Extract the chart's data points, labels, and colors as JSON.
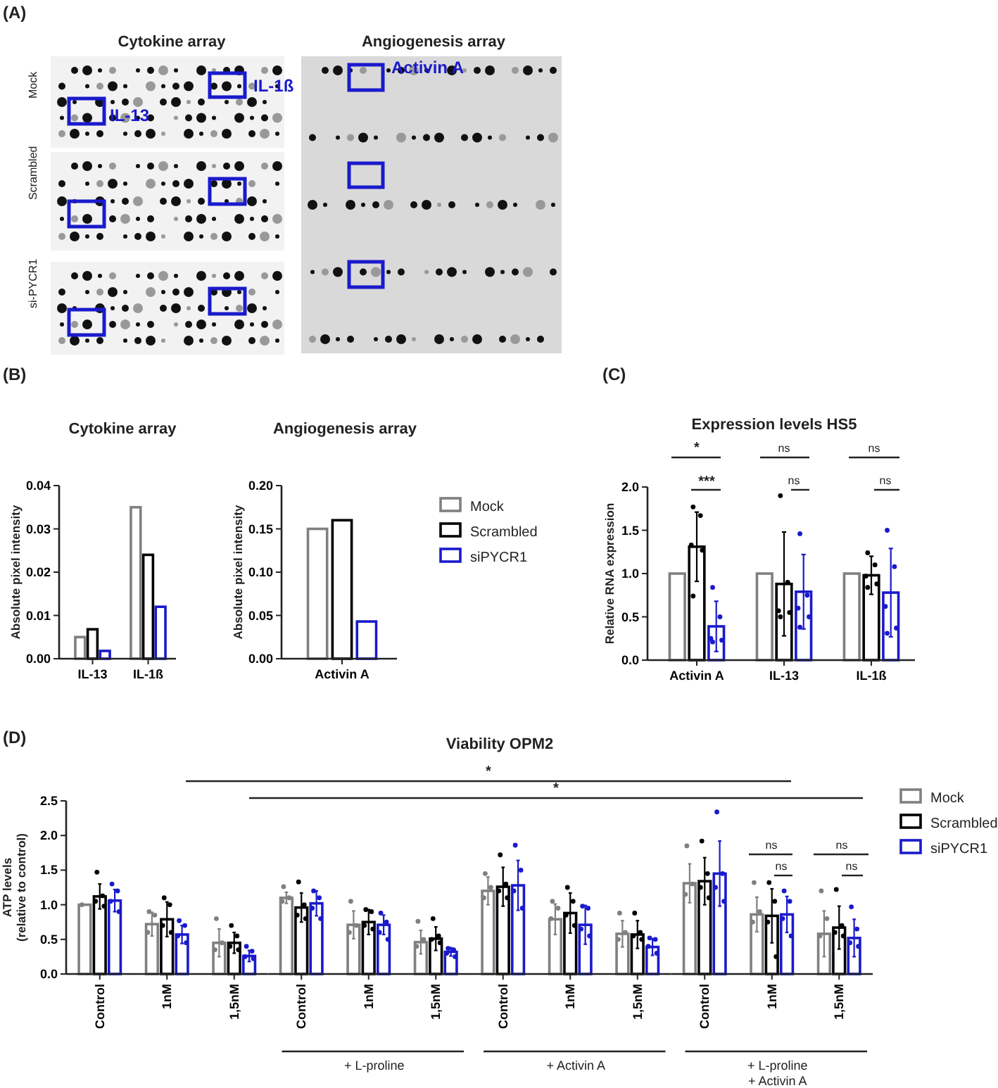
{
  "chart_data": [
    {
      "type": "other",
      "title": "(A)",
      "annotations": [
        "Cytokine array",
        "Angiogenesis array",
        "Mock",
        "Scrambled",
        "si-PYCR1",
        "IL-13",
        "IL-1ß",
        "Activin A"
      ]
    },
    {
      "type": "bar",
      "title": "Cytokine array",
      "ylabel": "Absolute pixel intensity",
      "annotations": [
        "(B)"
      ],
      "categories": [
        "IL-13",
        "IL-1ß"
      ],
      "ylim": [
        0,
        0.04
      ],
      "yticks": [
        {
          "value": 0,
          "label": "0.00"
        },
        {
          "value": 0.01,
          "label": "0.01"
        },
        {
          "value": 0.02,
          "label": "0.02"
        },
        {
          "value": 0.03,
          "label": "0.03"
        },
        {
          "value": 0.04,
          "label": "0.04"
        }
      ],
      "series": [
        {
          "color": "#808080",
          "values": [
            0.005,
            0.035
          ]
        },
        {
          "color": "#000000",
          "values": [
            0.0068,
            0.024
          ]
        },
        {
          "color": "#1a1acc",
          "values": [
            0.0018,
            0.012
          ]
        }
      ]
    },
    {
      "type": "bar",
      "title": "Angiogenesis array",
      "ylabel": "Absolute pixel intensity",
      "legend": "right",
      "categories": [
        "Activin A"
      ],
      "ylim": [
        0,
        0.2
      ],
      "yticks": [
        {
          "value": 0,
          "label": "0.00"
        },
        {
          "value": 0.05,
          "label": "0.05"
        },
        {
          "value": 0.1,
          "label": "0.10"
        },
        {
          "value": 0.15,
          "label": "0.15"
        },
        {
          "value": 0.2,
          "label": "0.20"
        }
      ],
      "series": [
        {
          "name": "Mock",
          "color": "#808080",
          "values": [
            0.15
          ]
        },
        {
          "name": "Scrambled",
          "color": "#000000",
          "values": [
            0.16
          ]
        },
        {
          "name": "siPYCR1",
          "color": "#1a1acc",
          "values": [
            0.043
          ]
        }
      ]
    },
    {
      "type": "bar",
      "title": "Expression levels HS5",
      "ylabel": "Relative RNA expression",
      "annotations": [
        "(C)",
        "*",
        "***",
        "ns",
        "ns",
        "ns",
        "ns"
      ],
      "marker": "circle",
      "categories": [
        "Activin A",
        "IL-13",
        "IL-1ß"
      ],
      "ylim": [
        0,
        2
      ],
      "yticks": [
        {
          "value": 0,
          "label": "0.0"
        },
        {
          "value": 0.5,
          "label": "0.5"
        },
        {
          "value": 1,
          "label": "1.0"
        },
        {
          "value": 1.5,
          "label": "1.5"
        },
        {
          "value": 2,
          "label": "2.0"
        }
      ],
      "series": [
        {
          "color": "#808080",
          "values": [
            1,
            1,
            1
          ]
        },
        {
          "color": "#000000",
          "values": [
            1.31,
            0.88,
            0.98
          ],
          "errors": [
            0.4,
            0.6,
            0.22
          ]
        },
        {
          "color": "#1a1acc",
          "values": [
            0.39,
            0.79,
            0.78
          ],
          "errors": [
            0.29,
            0.43,
            0.51
          ]
        },
        {
          "type": "scatter",
          "color": "#000000",
          "x": [
            "Activin A",
            "Activin A",
            "Activin A",
            "Activin A",
            "Activin A",
            "IL-13",
            "IL-13",
            "IL-13",
            "IL-13",
            "IL-13",
            "IL-1ß",
            "IL-1ß",
            "IL-1ß",
            "IL-1ß",
            "IL-1ß"
          ],
          "values": [
            1.77,
            1.67,
            1.33,
            1.27,
            0.74,
            1.9,
            0.9,
            0.57,
            0.55,
            0.5,
            1.24,
            1.1,
            0.97,
            0.88,
            0.84
          ]
        },
        {
          "type": "scatter",
          "color": "#1a1acc",
          "x": [
            "Activin A",
            "Activin A",
            "Activin A",
            "Activin A",
            "Activin A",
            "IL-13",
            "IL-13",
            "IL-13",
            "IL-13",
            "IL-13",
            "IL-1ß",
            "IL-1ß",
            "IL-1ß",
            "IL-1ß",
            "IL-1ß"
          ],
          "values": [
            0.84,
            0.5,
            0.25,
            0.23,
            0.21,
            1.46,
            0.75,
            0.6,
            0.5,
            0.38,
            1.5,
            1.08,
            0.62,
            0.37,
            0.31
          ]
        }
      ]
    },
    {
      "type": "bar",
      "ylabel": "ATP levels\n(relative to control)",
      "annotations": [
        "(D)",
        "Viability OPM2",
        "*",
        "*"
      ],
      "marker": "circle",
      "categories": [
        "Control",
        "1nM",
        "1,5nM"
      ],
      "ylim": [
        0,
        2.5
      ],
      "yticks": [
        {
          "value": 0,
          "label": "0.0"
        },
        {
          "value": 0.5,
          "label": "0.5"
        },
        {
          "value": 1,
          "label": "1.0"
        },
        {
          "value": 1.5,
          "label": "1.5"
        },
        {
          "value": 2,
          "label": "2.0"
        },
        {
          "value": 2.5,
          "label": "2.5"
        }
      ],
      "series": [
        {
          "color": "#808080",
          "values": [
            1.0,
            0.72,
            0.45
          ],
          "errors": [
            null,
            0.17,
            0.2
          ]
        },
        {
          "color": "#000000",
          "values": [
            1.12,
            0.79,
            0.45
          ],
          "errors": [
            0.18,
            0.25,
            0.15
          ]
        },
        {
          "color": "#1a1acc",
          "values": [
            1.06,
            0.57,
            0.26
          ],
          "errors": [
            0.16,
            0.13,
            0.08
          ]
        },
        {
          "type": "scatter",
          "color": "#808080",
          "x": [
            "Control",
            "1nM",
            "1nM",
            "1nM",
            "1,5nM",
            "1,5nM",
            "1,5nM"
          ],
          "values": [
            1.0,
            0.9,
            0.85,
            0.6,
            0.8,
            0.45,
            0.35
          ]
        },
        {
          "type": "scatter",
          "color": "#000000",
          "x": [
            "Control",
            "Control",
            "Control",
            "Control",
            "1nM",
            "1nM",
            "1nM",
            "1nM",
            "1,5nM",
            "1,5nM",
            "1,5nM",
            "1,5nM"
          ],
          "values": [
            1.47,
            1.13,
            1.05,
            0.98,
            1.1,
            1.0,
            0.7,
            0.6,
            0.7,
            0.55,
            0.4,
            0.35
          ]
        },
        {
          "type": "scatter",
          "color": "#1a1acc",
          "x": [
            "Control",
            "Control",
            "Control",
            "Control",
            "1nM",
            "1nM",
            "1nM",
            "1nM",
            "1,5nM",
            "1,5nM",
            "1,5nM",
            "1,5nM"
          ],
          "values": [
            1.3,
            1.2,
            1.05,
            0.9,
            0.77,
            0.7,
            0.55,
            0.45,
            0.4,
            0.33,
            0.25,
            0.22
          ]
        }
      ]
    },
    {
      "type": "bar",
      "xlabel": "+ L-proline",
      "tick_labels": "x",
      "marker": "circle",
      "categories": [
        "Control",
        "1nM",
        "1,5nM"
      ],
      "ylim": [
        0,
        2.5
      ],
      "series": [
        {
          "color": "#808080",
          "values": [
            1.1,
            0.71,
            0.46
          ],
          "errors": [
            0.08,
            0.2,
            0.17
          ]
        },
        {
          "color": "#000000",
          "values": [
            0.96,
            0.75,
            0.51
          ],
          "errors": [
            0.21,
            0.18,
            0.17
          ]
        },
        {
          "color": "#1a1acc",
          "values": [
            1.02,
            0.71,
            0.32
          ],
          "errors": [
            0.18,
            0.14,
            0.06
          ]
        },
        {
          "type": "scatter",
          "color": "#808080",
          "x": [
            "Control",
            "Control",
            "Control",
            "1nM",
            "1nM",
            "1nM",
            "1,5nM",
            "1,5nM",
            "1,5nM"
          ],
          "values": [
            1.26,
            1.1,
            1.05,
            1.05,
            0.7,
            0.6,
            0.76,
            0.5,
            0.4
          ]
        },
        {
          "type": "scatter",
          "color": "#000000",
          "x": [
            "Control",
            "Control",
            "Control",
            "Control",
            "1nM",
            "1nM",
            "1nM",
            "1nM",
            "1,5nM",
            "1,5nM",
            "1,5nM",
            "1,5nM"
          ],
          "values": [
            1.33,
            1.0,
            0.85,
            0.8,
            0.93,
            0.9,
            0.7,
            0.65,
            0.8,
            0.55,
            0.5,
            0.45
          ]
        },
        {
          "type": "scatter",
          "color": "#1a1acc",
          "x": [
            "Control",
            "Control",
            "Control",
            "Control",
            "1nM",
            "1nM",
            "1nM",
            "1nM",
            "1,5nM",
            "1,5nM",
            "1,5nM",
            "1,5nM"
          ],
          "values": [
            1.2,
            1.1,
            0.95,
            0.8,
            0.88,
            0.75,
            0.6,
            0.5,
            0.37,
            0.35,
            0.3,
            0.25
          ]
        }
      ]
    },
    {
      "type": "bar",
      "xlabel": "+ Activin A",
      "tick_labels": "x",
      "marker": "circle",
      "categories": [
        "Control",
        "1nM",
        "1,5nM"
      ],
      "ylim": [
        0,
        2.5
      ],
      "series": [
        {
          "color": "#808080",
          "values": [
            1.2,
            0.79,
            0.58
          ],
          "errors": [
            0.2,
            0.22,
            0.19
          ]
        },
        {
          "color": "#000000",
          "values": [
            1.26,
            0.88,
            0.57
          ],
          "errors": [
            0.28,
            0.29,
            0.2
          ]
        },
        {
          "color": "#1a1acc",
          "values": [
            1.28,
            0.71,
            0.39
          ],
          "errors": [
            0.36,
            0.28,
            0.12
          ]
        },
        {
          "type": "scatter",
          "color": "#808080",
          "x": [
            "Control",
            "Control",
            "Control",
            "1nM",
            "1nM",
            "1nM",
            "1,5nM",
            "1,5nM",
            "1,5nM"
          ],
          "values": [
            1.45,
            1.25,
            1.1,
            1.05,
            0.95,
            0.8,
            0.88,
            0.6,
            0.5
          ]
        },
        {
          "type": "scatter",
          "color": "#000000",
          "x": [
            "Control",
            "Control",
            "Control",
            "Control",
            "1nM",
            "1nM",
            "1nM",
            "1nM",
            "1,5nM",
            "1,5nM",
            "1,5nM",
            "1,5nM"
          ],
          "values": [
            1.72,
            1.3,
            1.2,
            1.1,
            1.25,
            1.05,
            0.85,
            0.7,
            0.88,
            0.6,
            0.55,
            0.5
          ]
        },
        {
          "type": "scatter",
          "color": "#1a1acc",
          "x": [
            "Control",
            "Control",
            "Control",
            "Control",
            "1nM",
            "1nM",
            "1nM",
            "1nM",
            "1,5nM",
            "1,5nM",
            "1,5nM",
            "1,5nM"
          ],
          "values": [
            1.86,
            1.5,
            1.2,
            0.95,
            0.98,
            0.95,
            0.65,
            0.55,
            0.52,
            0.5,
            0.4,
            0.3
          ]
        }
      ]
    },
    {
      "type": "bar",
      "xlabel": "+ L-proline\n+ Activin A",
      "tick_labels": "x",
      "legend": "right",
      "annotations": [
        "ns",
        "ns",
        "ns",
        "ns"
      ],
      "marker": "circle",
      "categories": [
        "Control",
        "1nM",
        "1,5nM"
      ],
      "ylim": [
        0,
        2.5
      ],
      "series": [
        {
          "name": "Mock",
          "color": "#808080",
          "values": [
            1.31,
            0.86,
            0.58
          ],
          "errors": [
            0.28,
            0.25,
            0.33
          ]
        },
        {
          "name": "Scrambled",
          "color": "#000000",
          "values": [
            1.34,
            0.84,
            0.67
          ],
          "errors": [
            0.34,
            0.39,
            0.31
          ]
        },
        {
          "name": "siPYCR1",
          "color": "#1a1acc",
          "values": [
            1.45,
            0.86,
            0.52
          ],
          "errors": [
            0.47,
            0.26,
            0.27
          ]
        },
        {
          "type": "scatter",
          "color": "#808080",
          "x": [
            "Control",
            "Control",
            "Control",
            "1nM",
            "1nM",
            "1nM",
            "1,5nM",
            "1,5nM",
            "1,5nM"
          ],
          "values": [
            1.85,
            1.3,
            1.15,
            1.32,
            0.9,
            0.75,
            1.2,
            0.8,
            0.55
          ]
        },
        {
          "type": "scatter",
          "color": "#000000",
          "x": [
            "Control",
            "Control",
            "Control",
            "Control",
            "1nM",
            "1nM",
            "1nM",
            "1nM",
            "1,5nM",
            "1,5nM",
            "1,5nM",
            "1,5nM"
          ],
          "values": [
            1.92,
            1.45,
            1.25,
            1.1,
            1.32,
            1.05,
            0.75,
            0.25,
            1.22,
            0.7,
            0.6,
            0.55
          ]
        },
        {
          "type": "scatter",
          "color": "#1a1acc",
          "x": [
            "Control",
            "Control",
            "Control",
            "Control",
            "1nM",
            "1nM",
            "1nM",
            "1nM",
            "1,5nM",
            "1,5nM",
            "1,5nM",
            "1,5nM"
          ],
          "values": [
            2.34,
            1.45,
            1.25,
            1.05,
            1.2,
            1.05,
            0.8,
            0.55,
            0.97,
            0.65,
            0.45,
            0.4
          ]
        }
      ]
    }
  ]
}
